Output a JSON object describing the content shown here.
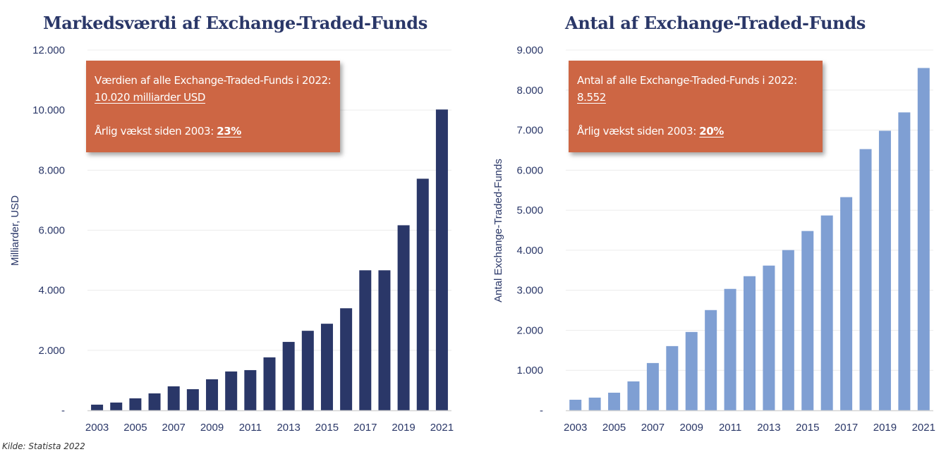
{
  "source": "Kilde: Statista 2022",
  "chart_data": [
    {
      "type": "bar",
      "title": "Markedsværdi af Exchange-Traded-Funds",
      "xlabel": "",
      "ylabel": "Milliarder, USD",
      "ylim": [
        0,
        12000
      ],
      "yticks": [
        0,
        2000,
        4000,
        6000,
        8000,
        10000,
        12000
      ],
      "ytick_labels": [
        "-",
        "2.000",
        "4.000",
        "6.000",
        "8.000",
        "10.000",
        "12.000"
      ],
      "categories": [
        "2003",
        "2004",
        "2005",
        "2006",
        "2007",
        "2008",
        "2009",
        "2010",
        "2011",
        "2012",
        "2013",
        "2014",
        "2015",
        "2016",
        "2017",
        "2018",
        "2019",
        "2020",
        "2021"
      ],
      "xtick_labels": [
        "2003",
        "2005",
        "2007",
        "2009",
        "2011",
        "2013",
        "2015",
        "2017",
        "2019",
        "2021"
      ],
      "values": [
        190,
        260,
        400,
        565,
        800,
        705,
        1035,
        1295,
        1340,
        1765,
        2280,
        2650,
        2885,
        3400,
        4665,
        4665,
        6165,
        7715,
        10020
      ],
      "grid": true,
      "bar_color": "#2a3768",
      "callout": {
        "line1": "Værdien af alle Exchange-Traded-Funds i 2022:",
        "value": "10.020 milliarder USD",
        "growth_label": "Årlig vækst siden 2003:",
        "growth_value": "23%",
        "color": "#cd6644"
      }
    },
    {
      "type": "bar",
      "title": "Antal af Exchange-Traded-Funds",
      "xlabel": "",
      "ylabel": "Antal Exchange-Traded-Funds",
      "ylim": [
        0,
        9000
      ],
      "yticks": [
        0,
        1000,
        2000,
        3000,
        4000,
        5000,
        6000,
        7000,
        8000,
        9000
      ],
      "ytick_labels": [
        "-",
        "1.000",
        "2.000",
        "3.000",
        "4.000",
        "5.000",
        "6.000",
        "7.000",
        "8.000",
        "9.000"
      ],
      "categories": [
        "2003",
        "2004",
        "2005",
        "2006",
        "2007",
        "2008",
        "2009",
        "2010",
        "2011",
        "2012",
        "2013",
        "2014",
        "2015",
        "2016",
        "2017",
        "2018",
        "2019",
        "2020",
        "2021"
      ],
      "xtick_labels": [
        "2003",
        "2005",
        "2007",
        "2009",
        "2011",
        "2013",
        "2015",
        "2017",
        "2019",
        "2021"
      ],
      "values": [
        265,
        318,
        441,
        723,
        1182,
        1605,
        1958,
        2505,
        3034,
        3351,
        3616,
        4004,
        4480,
        4868,
        5326,
        6526,
        6984,
        7443,
        8552
      ],
      "grid": true,
      "bar_color": "#7f9fd3",
      "callout": {
        "line1": "Antal af alle Exchange-Traded-Funds i 2022:",
        "value": "8.552",
        "growth_label": "Årlig vækst siden 2003:",
        "growth_value": "20%",
        "color": "#cd6644"
      }
    }
  ]
}
